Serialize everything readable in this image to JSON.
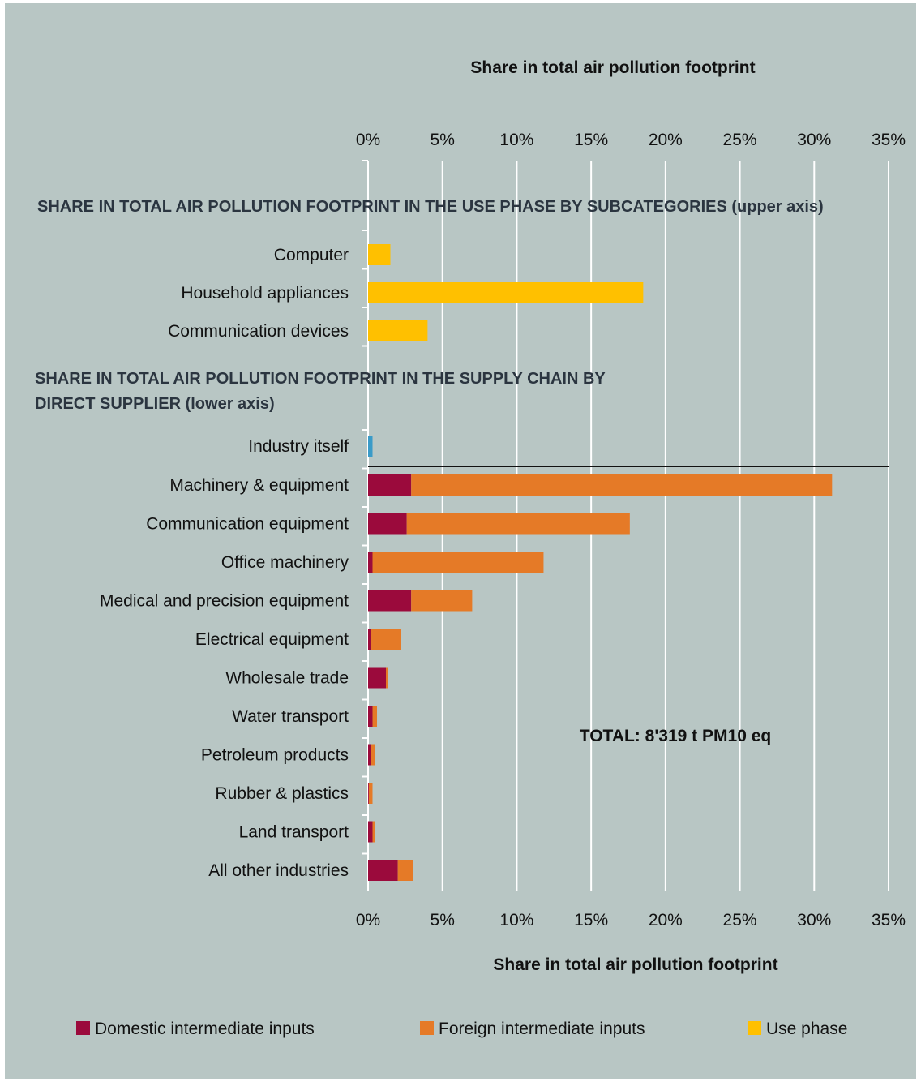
{
  "chart_data": {
    "type": "bar",
    "orientation": "horizontal",
    "stacked": true,
    "top_axis_title": "Share in total air pollution footprint",
    "bottom_axis_title": "Share in total air pollution footprint",
    "xlim": [
      0,
      35
    ],
    "x_ticks": [
      "0%",
      "5%",
      "10%",
      "15%",
      "20%",
      "25%",
      "30%",
      "35%"
    ],
    "grid": true,
    "section_upper_title": "SHARE IN TOTAL AIR POLLUTION FOOTPRINT IN THE USE PHASE BY SUBCATEGORIES (upper axis)",
    "section_lower_title_line1": "SHARE IN TOTAL AIR POLLUTION FOOTPRINT IN THE SUPPLY CHAIN BY",
    "section_lower_title_line2": "DIRECT SUPPLIER (lower axis)",
    "annotation": "TOTAL: 8'319 t PM10 eq",
    "upper_categories": [
      "Computer",
      "Household appliances",
      "Communication devices"
    ],
    "upper_values": [
      1.5,
      18.5,
      4.0
    ],
    "self_category": "Industry itself",
    "self_value": 0.3,
    "lower_categories": [
      "Machinery & equipment",
      "Communication equipment",
      "Office machinery",
      "Medical and precision equipment",
      "Electrical equipment",
      "Wholesale trade",
      "Water transport",
      "Petroleum products",
      "Rubber & plastics",
      "Land transport",
      "All other industries"
    ],
    "series": [
      {
        "name": "Domestic intermediate inputs",
        "color": "#9b0a3c",
        "values": [
          2.9,
          2.6,
          0.3,
          2.9,
          0.2,
          1.2,
          0.3,
          0.2,
          0.05,
          0.3,
          2.0
        ]
      },
      {
        "name": "Foreign intermediate inputs",
        "color": "#e57a27",
        "values": [
          28.3,
          15.0,
          11.5,
          4.1,
          2.0,
          0.15,
          0.3,
          0.25,
          0.25,
          0.15,
          1.0
        ]
      },
      {
        "name": "Use phase",
        "color": "#ffc000"
      }
    ],
    "self_color": "#3a9bc8",
    "legend_position": "bottom"
  }
}
